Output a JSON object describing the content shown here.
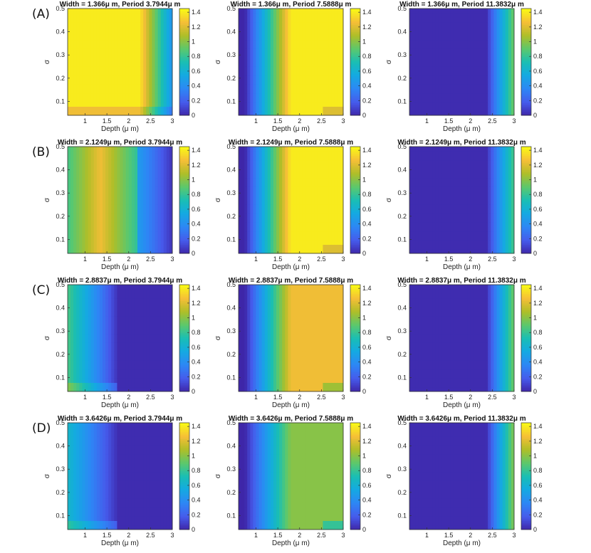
{
  "row_labels": [
    "(A)",
    "(B)",
    "(C)",
    "(D)"
  ],
  "chart_data": [
    {
      "type": "heatmap",
      "title": "Width = 1.366μ m, Period 3.7944μ m",
      "xlabel": "Depth (μ m)",
      "ylabel": "σ",
      "xticks": [
        "1",
        "1.5",
        "2",
        "2.5",
        "3"
      ],
      "yticks": [
        "0.1",
        "0.2",
        "0.3",
        "0.4",
        "0.5"
      ],
      "xlim": [
        0.6,
        3.0
      ],
      "ylim": [
        0.04,
        0.5
      ],
      "clim": [
        0,
        1.45
      ],
      "cbar_ticks": [
        "0",
        "0.2",
        "0.4",
        "0.6",
        "0.8",
        "1",
        "1.2",
        "1.4"
      ],
      "pattern": "bright-left",
      "peak": 1.4
    },
    {
      "type": "heatmap",
      "title": "Width = 1.366μ m, Period 7.5888μ m",
      "xlabel": "Depth (μ m)",
      "ylabel": "σ",
      "xticks": [
        "1",
        "1.5",
        "2",
        "2.5",
        "3"
      ],
      "yticks": [
        "0.1",
        "0.2",
        "0.3",
        "0.4",
        "0.5"
      ],
      "xlim": [
        0.6,
        3.0
      ],
      "ylim": [
        0.04,
        0.5
      ],
      "clim": [
        0,
        1.45
      ],
      "cbar_ticks": [
        "0",
        "0.2",
        "0.4",
        "0.6",
        "0.8",
        "1",
        "1.2",
        "1.4"
      ],
      "pattern": "rise-mid",
      "peak": 1.4
    },
    {
      "type": "heatmap",
      "title": "Width = 1.366μ m, Period 11.3832μ m",
      "xlabel": "Depth (μ m)",
      "ylabel": "σ",
      "xticks": [
        "1",
        "1.5",
        "2",
        "2.5",
        "3"
      ],
      "yticks": [
        "0.1",
        "0.2",
        "0.3",
        "0.4",
        "0.5"
      ],
      "xlim": [
        0.6,
        3.0
      ],
      "ylim": [
        0.04,
        0.5
      ],
      "clim": [
        0,
        1.45
      ],
      "cbar_ticks": [
        "0",
        "0.2",
        "0.4",
        "0.6",
        "0.8",
        "1",
        "1.2",
        "1.4"
      ],
      "pattern": "rise-right",
      "peak": 0.95
    },
    {
      "type": "heatmap",
      "title": "Width = 2.1249μ m, Period 3.7944μ m",
      "xlabel": "Depth (μ m)",
      "ylabel": "σ",
      "xticks": [
        "1",
        "1.5",
        "2",
        "2.5",
        "3"
      ],
      "yticks": [
        "0.1",
        "0.2",
        "0.3",
        "0.4",
        "0.5"
      ],
      "xlim": [
        0.6,
        3.0
      ],
      "ylim": [
        0.04,
        0.5
      ],
      "clim": [
        0,
        1.45
      ],
      "cbar_ticks": [
        "0",
        "0.2",
        "0.4",
        "0.6",
        "0.8",
        "1",
        "1.2",
        "1.4"
      ],
      "pattern": "mid-hump",
      "peak": 1.25
    },
    {
      "type": "heatmap",
      "title": "Width = 2.1249μ m, Period 7.5888μ m",
      "xlabel": "Depth (μ m)",
      "ylabel": "σ",
      "xticks": [
        "1",
        "1.5",
        "2",
        "2.5",
        "3"
      ],
      "yticks": [
        "0.1",
        "0.2",
        "0.3",
        "0.4",
        "0.5"
      ],
      "xlim": [
        0.6,
        3.0
      ],
      "ylim": [
        0.04,
        0.5
      ],
      "clim": [
        0,
        1.45
      ],
      "cbar_ticks": [
        "0",
        "0.2",
        "0.4",
        "0.6",
        "0.8",
        "1",
        "1.2",
        "1.4"
      ],
      "pattern": "rise-mid",
      "peak": 1.4
    },
    {
      "type": "heatmap",
      "title": "Width = 2.1249μ m, Period 11.3832μ m",
      "xlabel": "Depth (μ m)",
      "ylabel": "σ",
      "xticks": [
        "1",
        "1.5",
        "2",
        "2.5",
        "3"
      ],
      "yticks": [
        "0.1",
        "0.2",
        "0.3",
        "0.4",
        "0.5"
      ],
      "xlim": [
        0.6,
        3.0
      ],
      "ylim": [
        0.04,
        0.5
      ],
      "clim": [
        0,
        1.45
      ],
      "cbar_ticks": [
        "0",
        "0.2",
        "0.4",
        "0.6",
        "0.8",
        "1",
        "1.2",
        "1.4"
      ],
      "pattern": "rise-right",
      "peak": 0.85
    },
    {
      "type": "heatmap",
      "title": "Width = 2.8837μ m, Period 3.7944μ m",
      "xlabel": "Depth (μ m)",
      "ylabel": "σ",
      "xticks": [
        "1",
        "1.5",
        "2",
        "2.5",
        "3"
      ],
      "yticks": [
        "0.1",
        "0.2",
        "0.3",
        "0.4",
        "0.5"
      ],
      "xlim": [
        0.6,
        3.0
      ],
      "ylim": [
        0.04,
        0.5
      ],
      "clim": [
        0,
        1.45
      ],
      "cbar_ticks": [
        "0",
        "0.2",
        "0.4",
        "0.6",
        "0.8",
        "1",
        "1.2",
        "1.4"
      ],
      "pattern": "decay-left",
      "peak": 0.85
    },
    {
      "type": "heatmap",
      "title": "Width = 2.8837μ m, Period 7.5888μ m",
      "xlabel": "Depth (μ m)",
      "ylabel": "σ",
      "xticks": [
        "1",
        "1.5",
        "2",
        "2.5",
        "3"
      ],
      "yticks": [
        "0.1",
        "0.2",
        "0.3",
        "0.4",
        "0.5"
      ],
      "xlim": [
        0.6,
        3.0
      ],
      "ylim": [
        0.04,
        0.5
      ],
      "clim": [
        0,
        1.45
      ],
      "cbar_ticks": [
        "0",
        "0.2",
        "0.4",
        "0.6",
        "0.8",
        "1",
        "1.2",
        "1.4"
      ],
      "pattern": "rise-mid",
      "peak": 1.25
    },
    {
      "type": "heatmap",
      "title": "Width = 2.8837μ m, Period 11.3832μ m",
      "xlabel": "Depth (μ m)",
      "ylabel": "σ",
      "xticks": [
        "1",
        "1.5",
        "2",
        "2.5",
        "3"
      ],
      "yticks": [
        "0.1",
        "0.2",
        "0.3",
        "0.4",
        "0.5"
      ],
      "xlim": [
        0.6,
        3.0
      ],
      "ylim": [
        0.04,
        0.5
      ],
      "clim": [
        0,
        1.45
      ],
      "cbar_ticks": [
        "0",
        "0.2",
        "0.4",
        "0.6",
        "0.8",
        "1",
        "1.2",
        "1.4"
      ],
      "pattern": "rise-right",
      "peak": 0.95
    },
    {
      "type": "heatmap",
      "title": "Width = 3.6426μ m, Period 3.7944μ m",
      "xlabel": "Depth (μ m)",
      "ylabel": "σ",
      "xticks": [
        "1",
        "1.5",
        "2",
        "2.5",
        "3"
      ],
      "yticks": [
        "0.1",
        "0.2",
        "0.3",
        "0.4",
        "0.5"
      ],
      "xlim": [
        0.6,
        3.0
      ],
      "ylim": [
        0.04,
        0.5
      ],
      "clim": [
        0,
        1.45
      ],
      "cbar_ticks": [
        "0",
        "0.2",
        "0.4",
        "0.6",
        "0.8",
        "1",
        "1.2",
        "1.4"
      ],
      "pattern": "decay-left",
      "peak": 0.65
    },
    {
      "type": "heatmap",
      "title": "Width = 3.6426μ m, Period 7.5888μ m",
      "xlabel": "Depth (μ m)",
      "ylabel": "σ",
      "xticks": [
        "1",
        "1.5",
        "2",
        "2.5",
        "3"
      ],
      "yticks": [
        "0.1",
        "0.2",
        "0.3",
        "0.4",
        "0.5"
      ],
      "xlim": [
        0.6,
        3.0
      ],
      "ylim": [
        0.04,
        0.5
      ],
      "clim": [
        0,
        1.45
      ],
      "cbar_ticks": [
        "0",
        "0.2",
        "0.4",
        "0.6",
        "0.8",
        "1",
        "1.2",
        "1.4"
      ],
      "pattern": "rise-mid",
      "peak": 1.0
    },
    {
      "type": "heatmap",
      "title": "Width = 3.6426μ m, Period 11.3832μ m",
      "xlabel": "Depth (μ m)",
      "ylabel": "σ",
      "xticks": [
        "1",
        "1.5",
        "2",
        "2.5",
        "3"
      ],
      "yticks": [
        "0.1",
        "0.2",
        "0.3",
        "0.4",
        "0.5"
      ],
      "xlim": [
        0.6,
        3.0
      ],
      "ylim": [
        0.04,
        0.5
      ],
      "clim": [
        0,
        1.45
      ],
      "cbar_ticks": [
        "0",
        "0.2",
        "0.4",
        "0.6",
        "0.8",
        "1",
        "1.2",
        "1.4"
      ],
      "pattern": "rise-right",
      "peak": 1.0
    }
  ]
}
